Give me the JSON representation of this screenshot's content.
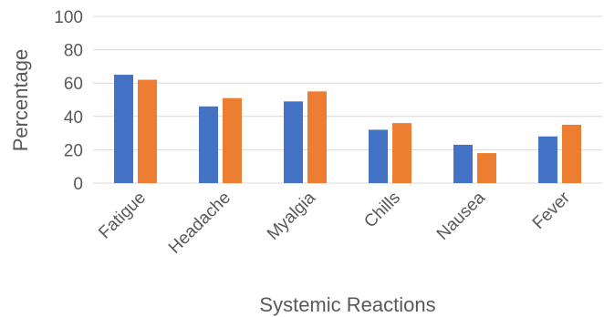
{
  "chart_data": {
    "type": "bar",
    "title": "",
    "xlabel": "Systemic Reactions",
    "ylabel": "Percentage",
    "ylim": [
      0,
      100
    ],
    "yticks": [
      0,
      20,
      40,
      60,
      80,
      100
    ],
    "grid": true,
    "legend": "none",
    "categories": [
      "Fatigue",
      "Headache",
      "Myalgia",
      "Chills",
      "Nausea",
      "Fever"
    ],
    "series": [
      {
        "values": [
          65,
          46,
          49,
          32,
          23,
          28
        ],
        "color": "#4472c4"
      },
      {
        "values": [
          62,
          51,
          55,
          36,
          18,
          35
        ],
        "color": "#ed7d31"
      }
    ]
  }
}
